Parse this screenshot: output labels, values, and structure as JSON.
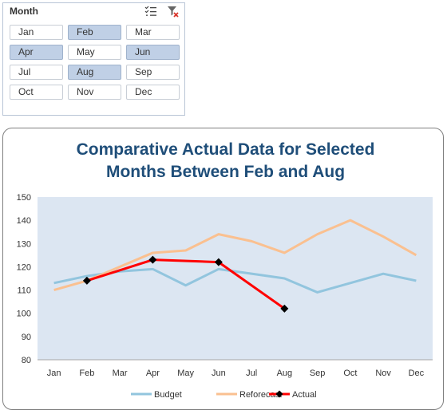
{
  "slicer": {
    "title": "Month",
    "icons": [
      "multi-select-icon",
      "clear-filter-icon"
    ],
    "items": [
      {
        "label": "Jan",
        "selected": false
      },
      {
        "label": "Feb",
        "selected": true
      },
      {
        "label": "Mar",
        "selected": false
      },
      {
        "label": "Apr",
        "selected": true
      },
      {
        "label": "May",
        "selected": false
      },
      {
        "label": "Jun",
        "selected": true
      },
      {
        "label": "Jul",
        "selected": false
      },
      {
        "label": "Aug",
        "selected": true
      },
      {
        "label": "Sep",
        "selected": false
      },
      {
        "label": "Oct",
        "selected": false
      },
      {
        "label": "Nov",
        "selected": false
      },
      {
        "label": "Dec",
        "selected": false
      }
    ]
  },
  "chart": {
    "title_line1": "Comparative Actual Data for Selected",
    "title_line2": "Months Between Feb and Aug"
  },
  "chart_data": {
    "type": "line",
    "title": "Comparative Actual Data for Selected Months Between Feb and Aug",
    "categories": [
      "Jan",
      "Feb",
      "Mar",
      "Apr",
      "May",
      "Jun",
      "Jul",
      "Aug",
      "Sep",
      "Oct",
      "Nov",
      "Dec"
    ],
    "ylim": [
      80,
      150
    ],
    "yticks": [
      80,
      90,
      100,
      110,
      120,
      130,
      140,
      150
    ],
    "grid": false,
    "legend_position": "bottom",
    "plot_background": "#dce6f2",
    "series": [
      {
        "name": "Budget",
        "color": "#92c5de",
        "values": [
          113,
          116,
          118,
          119,
          112,
          119,
          117,
          115,
          109,
          113,
          117,
          114
        ]
      },
      {
        "name": "Reforecast",
        "color": "#fac090",
        "values": [
          110,
          114,
          null,
          126,
          127,
          134,
          131,
          126,
          134,
          140,
          133,
          125
        ]
      },
      {
        "name": "Actual",
        "color": "#ff0000",
        "marker": "diamond",
        "marker_color": "#000000",
        "values": [
          null,
          114,
          null,
          123,
          null,
          122,
          null,
          102,
          null,
          null,
          null,
          null
        ]
      }
    ]
  }
}
